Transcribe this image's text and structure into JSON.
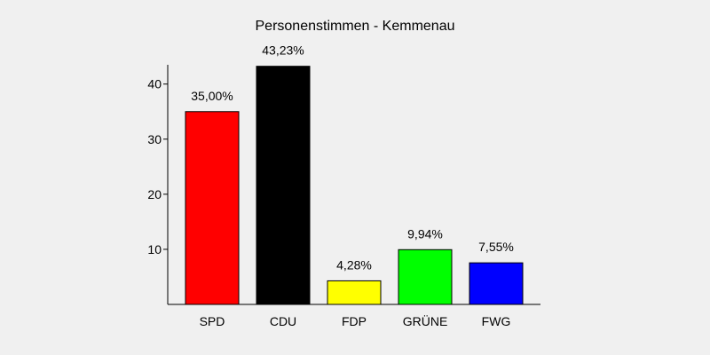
{
  "chart_data": {
    "type": "bar",
    "title": "Personenstimmen - Kemmenau",
    "xlabel": "",
    "ylabel": "",
    "ylim": [
      0,
      43.5
    ],
    "yticks": [
      10,
      20,
      30,
      40
    ],
    "grid": false,
    "categories": [
      "SPD",
      "CDU",
      "FDP",
      "GRÜNE",
      "FWG"
    ],
    "values": [
      35.0,
      43.23,
      4.28,
      9.94,
      7.55
    ],
    "value_labels": [
      "35,00%",
      "43,23%",
      "4,28%",
      "9,94%",
      "7,55%"
    ],
    "colors": [
      "#ff0000",
      "#000000",
      "#ffff00",
      "#00ff00",
      "#0000ff"
    ]
  }
}
